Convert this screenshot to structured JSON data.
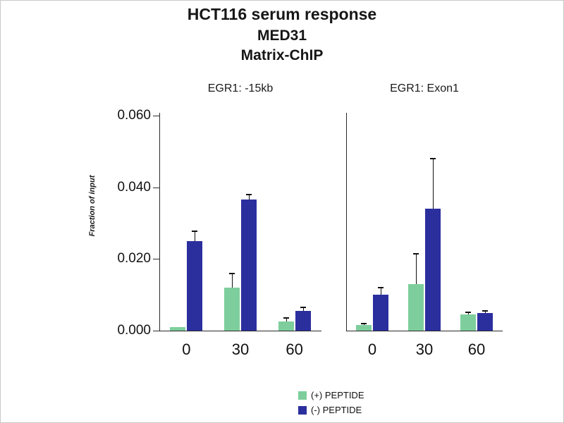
{
  "title": {
    "line1": "HCT116 serum response",
    "line2": "MED31",
    "line3": "Matrix-ChIP"
  },
  "y_axis": {
    "label": "Fraction of input",
    "ticks": [
      "0.060",
      "0.040",
      "0.020",
      "0.000"
    ]
  },
  "x_axis": {
    "categories": [
      "0",
      "30",
      "60"
    ]
  },
  "legend": [
    {
      "label": "(+) PEPTIDE",
      "color": "#7DCE9C"
    },
    {
      "label": "(-) PEPTIDE",
      "color": "#2B2F9E"
    }
  ],
  "chart_data": [
    {
      "type": "bar",
      "title": "EGR1: -15kb",
      "categories": [
        "0",
        "30",
        "60"
      ],
      "series": [
        {
          "name": "(+) PEPTIDE",
          "color": "#7DCE9C",
          "values": [
            0.001,
            0.012,
            0.0025
          ],
          "errors": [
            0.0002,
            0.004,
            0.001
          ]
        },
        {
          "name": "(-) PEPTIDE",
          "color": "#2B2F9E",
          "values": [
            0.025,
            0.0365,
            0.0055
          ],
          "errors": [
            0.0028,
            0.0013,
            0.001
          ]
        }
      ],
      "ylabel": "Fraction of input",
      "ylim": [
        0,
        0.06
      ],
      "grid": false,
      "legend_position": "bottom"
    },
    {
      "type": "bar",
      "title": "EGR1: Exon1",
      "categories": [
        "0",
        "30",
        "60"
      ],
      "series": [
        {
          "name": "(+) PEPTIDE",
          "color": "#7DCE9C",
          "values": [
            0.0015,
            0.013,
            0.0045
          ],
          "errors": [
            0.0004,
            0.0085,
            0.0005
          ]
        },
        {
          "name": "(-) PEPTIDE",
          "color": "#2B2F9E",
          "values": [
            0.01,
            0.034,
            0.005
          ],
          "errors": [
            0.002,
            0.014,
            0.0005
          ]
        }
      ],
      "ylabel": "Fraction of input",
      "ylim": [
        0,
        0.06
      ],
      "grid": false,
      "legend_position": "bottom"
    }
  ]
}
